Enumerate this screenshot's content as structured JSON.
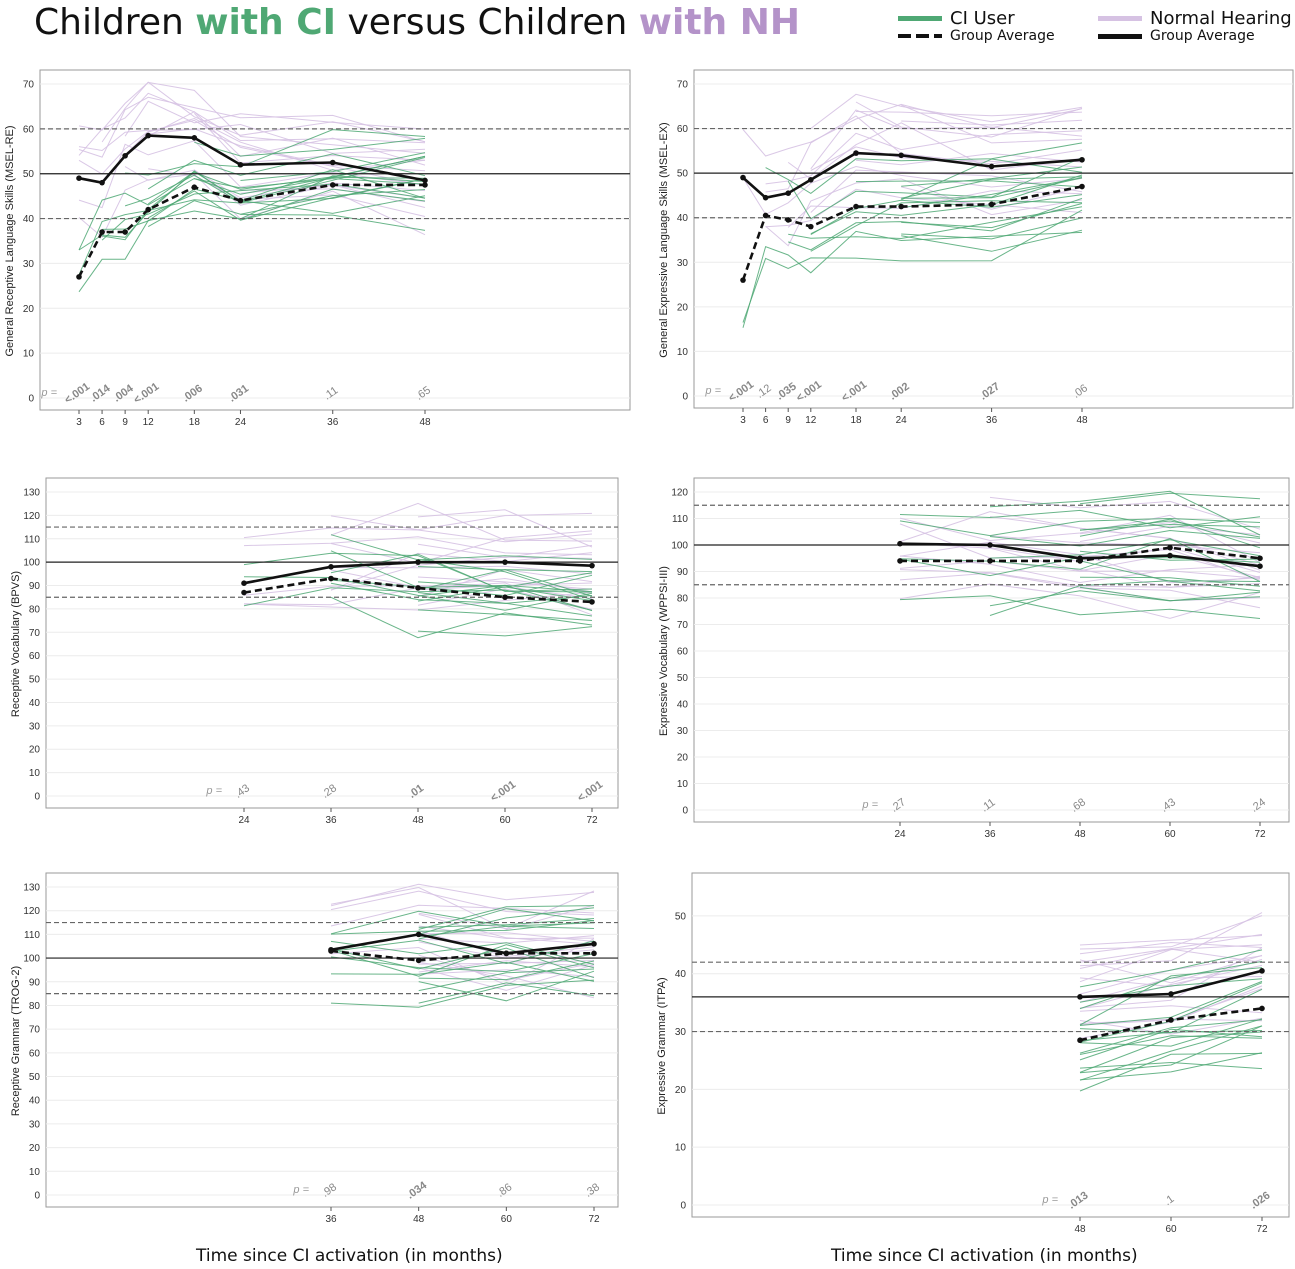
{
  "title": {
    "part1": "Children ",
    "part2": "with CI",
    "part3": " versus Children ",
    "part4": "with NH"
  },
  "legend": {
    "ci_label": "CI User",
    "ci_sub": "Group Average",
    "nh_label": "Normal Hearing",
    "nh_sub": "Group Average"
  },
  "xlabels": {
    "left": "Time since CI activation (in months)",
    "right": "Time since CI activation (in months)"
  },
  "colors": {
    "ci": "#4fa874",
    "nh": "#d6c2e3",
    "avg": "#111111",
    "ref": "#666666"
  },
  "chart_data": [
    {
      "type": "line",
      "ylabel": "General Receptive Language Skills (MSEL-RE)",
      "x": [
        3,
        6,
        9,
        12,
        18,
        24,
        36,
        48
      ],
      "xlim": [
        0,
        72
      ],
      "ylim": [
        0,
        70
      ],
      "ytick_step": 10,
      "ref_lines": {
        "mean": 50,
        "sd": [
          40,
          60
        ]
      },
      "series": [
        {
          "group": "CI",
          "stat": "average",
          "values": [
            27,
            37,
            37,
            42,
            47,
            44,
            47.5,
            47.5
          ]
        },
        {
          "group": "NH",
          "stat": "average",
          "values": [
            49,
            48,
            54,
            58.5,
            58,
            52,
            52.5,
            48.5
          ]
        }
      ],
      "p_label": "p =",
      "p_values": [
        "<.001",
        ".014",
        ".004",
        "<.001",
        ".006",
        ".031",
        ".11",
        ".65"
      ],
      "p_bold": [
        true,
        true,
        true,
        true,
        true,
        true,
        false,
        false
      ]
    },
    {
      "type": "line",
      "ylabel": "General Expressive Language Skills (MSEL-EX)",
      "x": [
        3,
        6,
        9,
        12,
        18,
        24,
        36,
        48
      ],
      "xlim": [
        0,
        72
      ],
      "ylim": [
        0,
        70
      ],
      "ytick_step": 10,
      "ref_lines": {
        "mean": 50,
        "sd": [
          40,
          60
        ]
      },
      "series": [
        {
          "group": "CI",
          "stat": "average",
          "values": [
            26,
            40.5,
            39.5,
            38,
            42.5,
            42.5,
            43,
            47
          ]
        },
        {
          "group": "NH",
          "stat": "average",
          "values": [
            49,
            44.5,
            45.5,
            48.5,
            54.5,
            54,
            51.5,
            53
          ]
        }
      ],
      "p_label": "p =",
      "p_values": [
        "<.001",
        ".12",
        ".035",
        "<.001",
        "<.001",
        ".002",
        ".027",
        ".06"
      ],
      "p_bold": [
        true,
        false,
        true,
        true,
        true,
        true,
        true,
        false
      ]
    },
    {
      "type": "line",
      "ylabel": "Receptive Vocabulary (BPVS)",
      "x": [
        24,
        36,
        48,
        60,
        72
      ],
      "xlim": [
        0,
        72
      ],
      "ylim": [
        0,
        130
      ],
      "ytick_step": 10,
      "ref_lines": {
        "mean": 100,
        "sd": [
          85,
          115
        ]
      },
      "series": [
        {
          "group": "CI",
          "stat": "average",
          "values": [
            87,
            93,
            89,
            85,
            83
          ]
        },
        {
          "group": "NH",
          "stat": "average",
          "values": [
            91,
            98,
            100,
            100,
            98.5
          ]
        }
      ],
      "p_label": "p =",
      "p_values": [
        ".43",
        ".28",
        ".01",
        "<.001",
        "<.001"
      ],
      "p_bold": [
        false,
        false,
        true,
        true,
        true
      ]
    },
    {
      "type": "line",
      "ylabel": "Expressive Vocabulary (WPPSI-III)",
      "x": [
        24,
        36,
        48,
        60,
        72
      ],
      "xlim": [
        0,
        72
      ],
      "ylim": [
        0,
        120
      ],
      "ytick_step": 10,
      "ref_lines": {
        "mean": 100,
        "sd": [
          85,
          115
        ]
      },
      "series": [
        {
          "group": "CI",
          "stat": "average",
          "values": [
            94,
            94,
            94,
            99,
            95
          ]
        },
        {
          "group": "NH",
          "stat": "average",
          "values": [
            100.5,
            100,
            95,
            96,
            92
          ]
        }
      ],
      "p_label": "p =",
      "p_values": [
        ".27",
        ".11",
        ".68",
        ".43",
        ".24"
      ],
      "p_bold": [
        false,
        false,
        false,
        false,
        false
      ]
    },
    {
      "type": "line",
      "ylabel": "Receptive Grammar (TROG-2)",
      "x": [
        36,
        48,
        60,
        72
      ],
      "xlim": [
        0,
        72
      ],
      "ylim": [
        0,
        130
      ],
      "ytick_step": 10,
      "ref_lines": {
        "mean": 100,
        "sd": [
          85,
          115
        ]
      },
      "series": [
        {
          "group": "CI",
          "stat": "average",
          "values": [
            103,
            99,
            102,
            102
          ]
        },
        {
          "group": "NH",
          "stat": "average",
          "values": [
            103.5,
            110,
            102,
            106
          ]
        }
      ],
      "p_label": "p =",
      "p_values": [
        ".98",
        ".034",
        ".86",
        ".38"
      ],
      "p_bold": [
        false,
        true,
        false,
        false
      ]
    },
    {
      "type": "line",
      "ylabel": "Expressive Grammar (ITPA)",
      "x": [
        48,
        60,
        72
      ],
      "xlim": [
        0,
        72
      ],
      "ylim": [
        0,
        55
      ],
      "ytick_step": 10,
      "ref_lines": {
        "mean": 36,
        "sd": [
          30,
          42
        ]
      },
      "series": [
        {
          "group": "CI",
          "stat": "average",
          "values": [
            28.5,
            32,
            34
          ]
        },
        {
          "group": "NH",
          "stat": "average",
          "values": [
            36,
            36.5,
            40.5
          ]
        }
      ],
      "p_label": "p =",
      "p_values": [
        ".013",
        ".1",
        ".026"
      ],
      "p_bold": [
        true,
        false,
        true
      ]
    }
  ]
}
